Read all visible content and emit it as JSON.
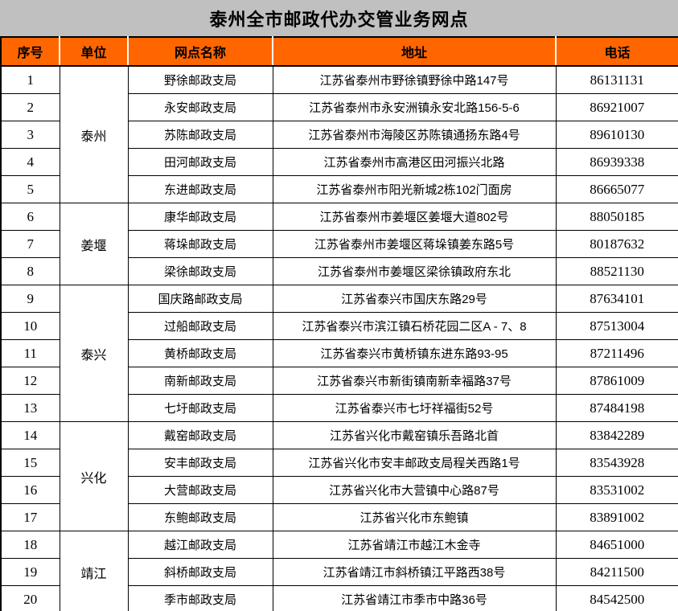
{
  "page": {
    "title": "泰州全市邮政代办交管业务网点",
    "colors": {
      "page_background": "#c0c0c0",
      "header_background": "#ff6600",
      "header_divider": "#ffffff",
      "table_border": "#000000",
      "cell_background": "#ffffff",
      "text": "#000000"
    }
  },
  "table": {
    "headers": {
      "seq": "序号",
      "unit": "单位",
      "name": "网点名称",
      "address": "地址",
      "phone": "电话"
    },
    "groups": [
      {
        "unit": "泰州",
        "rows": [
          {
            "seq": "1",
            "name": "野徐邮政支局",
            "address": "江苏省泰州市野徐镇野徐中路147号",
            "phone": "86131131"
          },
          {
            "seq": "2",
            "name": "永安邮政支局",
            "address": "江苏省泰州市永安洲镇永安北路156-5-6",
            "phone": "86921007"
          },
          {
            "seq": "3",
            "name": "苏陈邮政支局",
            "address": "江苏省泰州市海陵区苏陈镇通扬东路4号",
            "phone": "89610130"
          },
          {
            "seq": "4",
            "name": "田河邮政支局",
            "address": "江苏省泰州市高港区田河振兴北路",
            "phone": "86939338"
          },
          {
            "seq": "5",
            "name": "东进邮政支局",
            "address": "江苏省泰州市阳光新城2栋102门面房",
            "phone": "86665077"
          }
        ]
      },
      {
        "unit": "姜堰",
        "rows": [
          {
            "seq": "6",
            "name": "康华邮政支局",
            "address": "江苏省泰州市姜堰区姜堰大道802号",
            "phone": "88050185"
          },
          {
            "seq": "7",
            "name": "蒋垛邮政支局",
            "address": "江苏省泰州市姜堰区蒋垛镇姜东路5号",
            "phone": "80187632"
          },
          {
            "seq": "8",
            "name": "梁徐邮政支局",
            "address": "江苏省泰州市姜堰区梁徐镇政府东北",
            "phone": "88521130"
          }
        ]
      },
      {
        "unit": "泰兴",
        "rows": [
          {
            "seq": "9",
            "name": "国庆路邮政支局",
            "address": "江苏省泰兴市国庆东路29号",
            "phone": "87634101"
          },
          {
            "seq": "10",
            "name": "过船邮政支局",
            "address": "江苏省泰兴市滨江镇石桥花园二区A - 7、8",
            "phone": "87513004"
          },
          {
            "seq": "11",
            "name": "黄桥邮政支局",
            "address": "江苏省泰兴市黄桥镇东进东路93-95",
            "phone": "87211496"
          },
          {
            "seq": "12",
            "name": "南新邮政支局",
            "address": "江苏省泰兴市新街镇南新幸福路37号",
            "phone": "87861009"
          },
          {
            "seq": "13",
            "name": "七圩邮政支局",
            "address": "江苏省泰兴市七圩祥福街52号",
            "phone": "87484198"
          }
        ]
      },
      {
        "unit": "兴化",
        "rows": [
          {
            "seq": "14",
            "name": "戴窑邮政支局",
            "address": "江苏省兴化市戴窑镇乐吾路北首",
            "phone": "83842289"
          },
          {
            "seq": "15",
            "name": "安丰邮政支局",
            "address": "江苏省兴化市安丰邮政支局程关西路1号",
            "phone": "83543928"
          },
          {
            "seq": "16",
            "name": "大营邮政支局",
            "address": "江苏省兴化市大营镇中心路87号",
            "phone": "83531002"
          },
          {
            "seq": "17",
            "name": "东鲍邮政支局",
            "address": "江苏省兴化市东鲍镇",
            "phone": "83891002"
          }
        ]
      },
      {
        "unit": "靖江",
        "rows": [
          {
            "seq": "18",
            "name": "越江邮政支局",
            "address": "江苏省靖江市越江木金寺",
            "phone": "84651000"
          },
          {
            "seq": "19",
            "name": "斜桥邮政支局",
            "address": "江苏省靖江市斜桥镇江平路西38号",
            "phone": "84211500"
          },
          {
            "seq": "20",
            "name": "季市邮政支局",
            "address": "江苏省靖江市季市中路36号",
            "phone": "84542500"
          }
        ]
      }
    ]
  }
}
